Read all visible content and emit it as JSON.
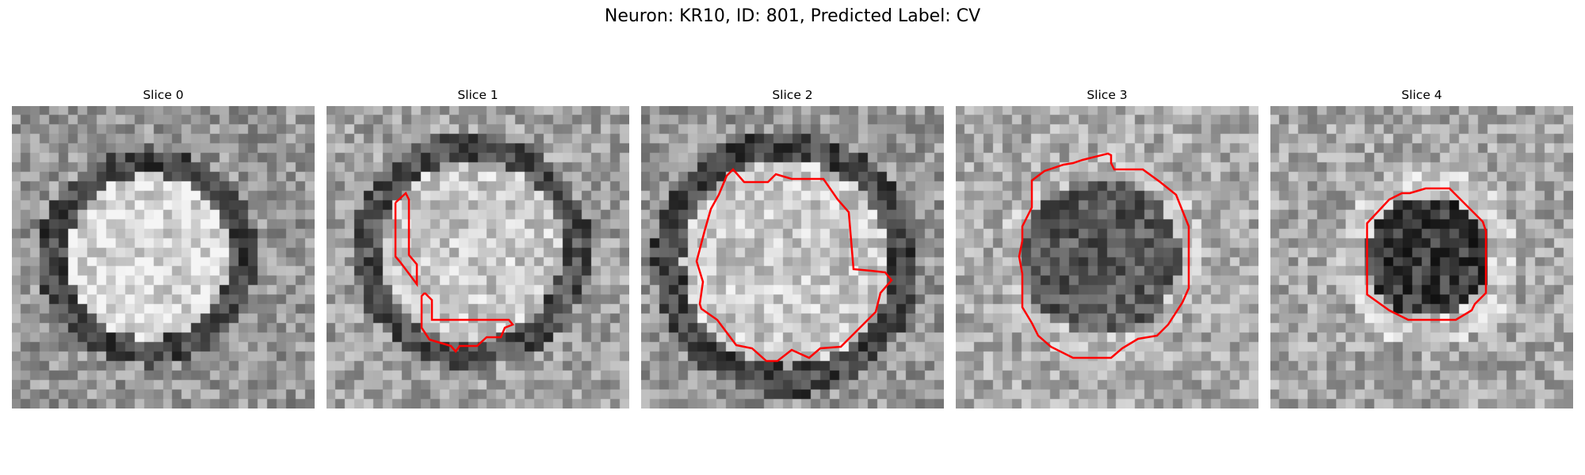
{
  "figure": {
    "title": "Neuron: KR10, ID: 801, Predicted Label: CV"
  },
  "panels": [
    {
      "title": "Slice 0",
      "contour_color": "#ff0000",
      "has_contour": false
    },
    {
      "title": "Slice 1",
      "contour_color": "#ff0000",
      "has_contour": true
    },
    {
      "title": "Slice 2",
      "contour_color": "#ff0000",
      "has_contour": true
    },
    {
      "title": "Slice 3",
      "contour_color": "#ff0000",
      "has_contour": true
    },
    {
      "title": "Slice 4",
      "contour_color": "#ff0000",
      "has_contour": true
    }
  ]
}
